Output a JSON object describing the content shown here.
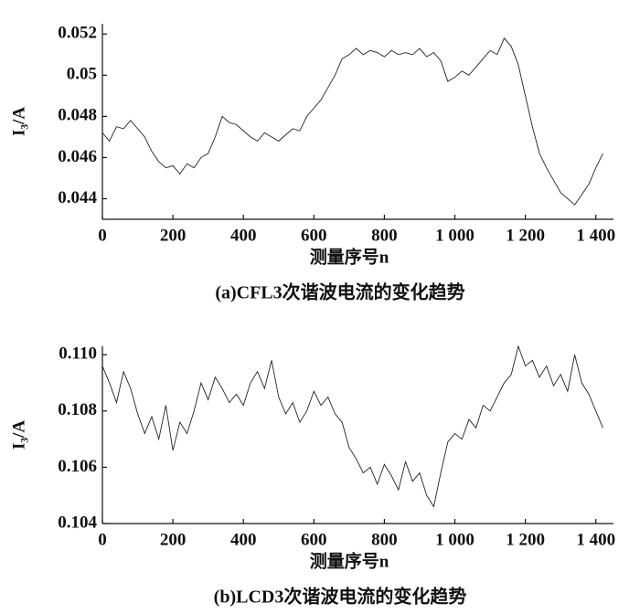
{
  "chart_data": [
    {
      "type": "line",
      "ylabel": "I₃/A",
      "xlabel": "测量序号n",
      "caption": "(a)CFL3次谐波电流的变化趋势",
      "color": "#222222",
      "xlim": [
        0,
        1450
      ],
      "ylim": [
        0.043,
        0.0525
      ],
      "xticks": [
        0,
        200,
        400,
        600,
        800,
        {
          "value": 1000,
          "label": "1 000"
        },
        {
          "value": 1200,
          "label": "1 200"
        },
        {
          "value": 1400,
          "label": "1 400"
        }
      ],
      "yticks": [
        0.044,
        0.046,
        0.048,
        0.05,
        0.052
      ],
      "x": [
        0,
        20,
        40,
        60,
        80,
        100,
        120,
        140,
        160,
        180,
        200,
        220,
        240,
        260,
        280,
        300,
        320,
        340,
        360,
        380,
        400,
        420,
        440,
        460,
        480,
        500,
        520,
        540,
        560,
        580,
        600,
        620,
        640,
        660,
        680,
        700,
        720,
        740,
        760,
        780,
        800,
        820,
        840,
        860,
        880,
        900,
        920,
        940,
        960,
        980,
        1000,
        1020,
        1040,
        1060,
        1080,
        1100,
        1120,
        1140,
        1160,
        1180,
        1200,
        1220,
        1240,
        1260,
        1280,
        1300,
        1320,
        1340,
        1360,
        1380,
        1400,
        1420
      ],
      "values": [
        0.0472,
        0.0468,
        0.0475,
        0.0474,
        0.0478,
        0.0474,
        0.047,
        0.0463,
        0.0458,
        0.0455,
        0.0456,
        0.0452,
        0.0457,
        0.0455,
        0.046,
        0.0462,
        0.047,
        0.048,
        0.0477,
        0.0476,
        0.0473,
        0.047,
        0.0468,
        0.0472,
        0.047,
        0.0468,
        0.0471,
        0.0474,
        0.0473,
        0.048,
        0.0484,
        0.0488,
        0.0494,
        0.05,
        0.0508,
        0.051,
        0.0513,
        0.051,
        0.0512,
        0.0511,
        0.0509,
        0.0512,
        0.051,
        0.0511,
        0.051,
        0.0513,
        0.0509,
        0.0511,
        0.0507,
        0.0497,
        0.0499,
        0.0502,
        0.05,
        0.0504,
        0.0508,
        0.0512,
        0.051,
        0.0518,
        0.0514,
        0.0505,
        0.049,
        0.0475,
        0.0462,
        0.0455,
        0.0449,
        0.0443,
        0.044,
        0.0437,
        0.0442,
        0.0447,
        0.0455,
        0.0462
      ]
    },
    {
      "type": "line",
      "ylabel": "I₃/A",
      "xlabel": "测量序号n",
      "caption": "(b)LCD3次谐波电流的变化趋势",
      "color": "#222222",
      "xlim": [
        0,
        1450
      ],
      "ylim": [
        0.104,
        0.1103
      ],
      "xticks": [
        0,
        200,
        400,
        600,
        800,
        {
          "value": 1000,
          "label": "1 000"
        },
        {
          "value": 1200,
          "label": "1 200"
        },
        {
          "value": 1400,
          "label": "1 400"
        }
      ],
      "yticks": [
        0.104,
        0.106,
        0.108,
        {
          "value": 0.11,
          "label": "0.110"
        }
      ],
      "x": [
        0,
        20,
        40,
        60,
        80,
        100,
        120,
        140,
        160,
        180,
        200,
        220,
        240,
        260,
        280,
        300,
        320,
        340,
        360,
        380,
        400,
        420,
        440,
        460,
        480,
        500,
        520,
        540,
        560,
        580,
        600,
        620,
        640,
        660,
        680,
        700,
        720,
        740,
        760,
        780,
        800,
        820,
        840,
        860,
        880,
        900,
        920,
        940,
        960,
        980,
        1000,
        1020,
        1040,
        1060,
        1080,
        1100,
        1120,
        1140,
        1160,
        1180,
        1200,
        1220,
        1240,
        1260,
        1280,
        1300,
        1320,
        1340,
        1360,
        1380,
        1400,
        1420
      ],
      "values": [
        0.1096,
        0.109,
        0.1083,
        0.1094,
        0.1088,
        0.1079,
        0.1072,
        0.1078,
        0.107,
        0.1082,
        0.1066,
        0.1076,
        0.1072,
        0.108,
        0.109,
        0.1084,
        0.1092,
        0.1088,
        0.1083,
        0.1086,
        0.1082,
        0.109,
        0.1094,
        0.1088,
        0.1098,
        0.1085,
        0.1079,
        0.1083,
        0.1076,
        0.108,
        0.1087,
        0.1082,
        0.1085,
        0.1079,
        0.1076,
        0.1067,
        0.1063,
        0.1058,
        0.106,
        0.1054,
        0.1061,
        0.1057,
        0.1052,
        0.1062,
        0.1055,
        0.1058,
        0.105,
        0.1046,
        0.1058,
        0.1069,
        0.1072,
        0.107,
        0.1077,
        0.1074,
        0.1082,
        0.108,
        0.1085,
        0.109,
        0.1093,
        0.1103,
        0.1096,
        0.1098,
        0.1092,
        0.1096,
        0.1089,
        0.1093,
        0.1087,
        0.11,
        0.109,
        0.1086,
        0.108,
        0.1074
      ]
    }
  ]
}
